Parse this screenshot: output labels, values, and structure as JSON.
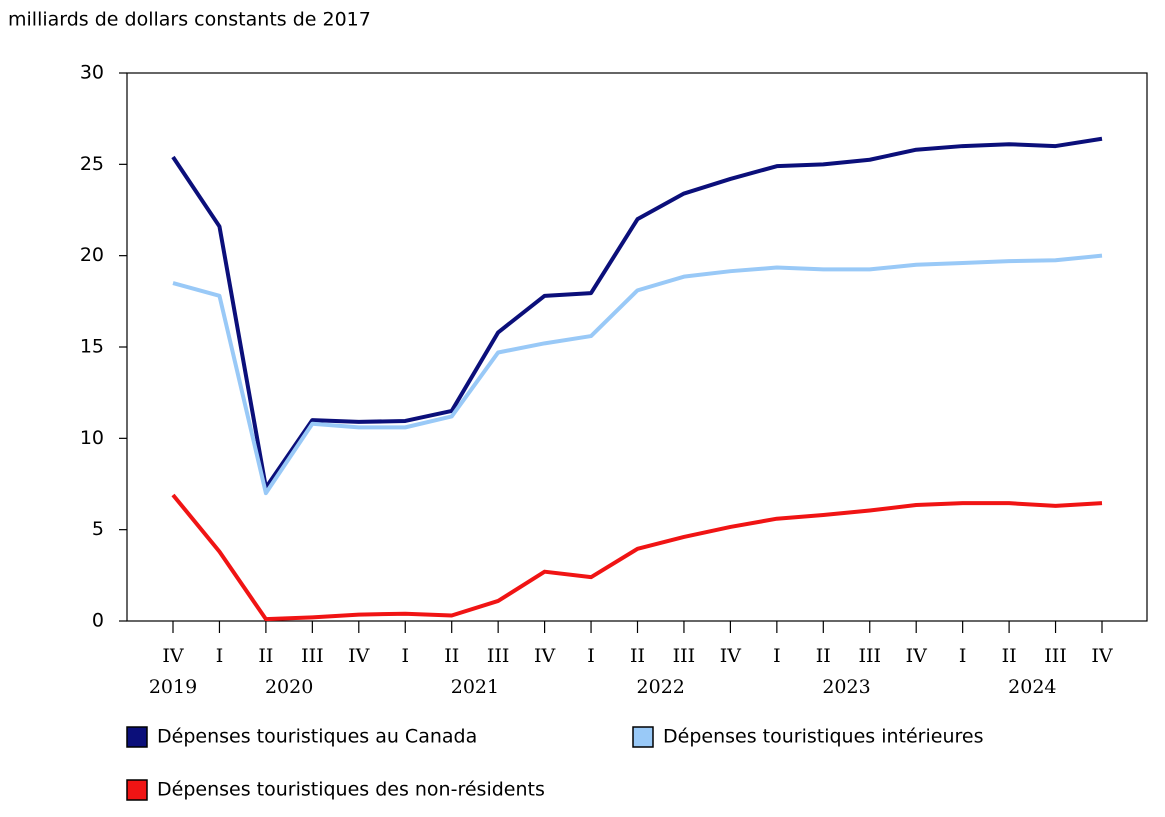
{
  "chart_data": {
    "type": "line",
    "title": "milliards de dollars constants de 2017",
    "categories": [
      "IV",
      "I",
      "II",
      "III",
      "IV",
      "I",
      "II",
      "III",
      "IV",
      "I",
      "II",
      "III",
      "IV",
      "I",
      "II",
      "III",
      "IV",
      "I",
      "II",
      "III",
      "IV"
    ],
    "groups": [
      {
        "name": "2019",
        "count": 1
      },
      {
        "name": "2020",
        "count": 4
      },
      {
        "name": "2021",
        "count": 4
      },
      {
        "name": "2022",
        "count": 4
      },
      {
        "name": "2023",
        "count": 4
      },
      {
        "name": "2024",
        "count": 4
      }
    ],
    "series": [
      {
        "name": "Dépenses touristiques au Canada",
        "color": "#0b0f7a",
        "values": [
          25.4,
          21.6,
          7.3,
          11.0,
          10.9,
          10.95,
          11.5,
          15.8,
          17.8,
          17.95,
          22.0,
          23.4,
          24.2,
          24.9,
          25.0,
          25.25,
          25.8,
          26.0,
          26.1,
          26.0,
          26.4
        ]
      },
      {
        "name": "Dépenses touristiques intérieures",
        "color": "#99c9f7",
        "values": [
          18.5,
          17.8,
          7.0,
          10.8,
          10.6,
          10.6,
          11.2,
          14.7,
          15.2,
          15.6,
          18.1,
          18.85,
          19.15,
          19.35,
          19.25,
          19.25,
          19.5,
          19.6,
          19.7,
          19.75,
          20.0
        ]
      },
      {
        "name": "Dépenses touristiques des non-résidents",
        "color": "#f01414",
        "values": [
          6.9,
          3.8,
          0.1,
          0.2,
          0.35,
          0.4,
          0.3,
          1.1,
          2.7,
          2.4,
          3.95,
          4.6,
          5.15,
          5.6,
          5.8,
          6.05,
          6.35,
          6.45,
          6.45,
          6.3,
          6.45
        ]
      }
    ],
    "ylim": [
      0,
      30
    ],
    "yticks": [
      0,
      5,
      10,
      15,
      20,
      25,
      30
    ],
    "grid": false
  }
}
